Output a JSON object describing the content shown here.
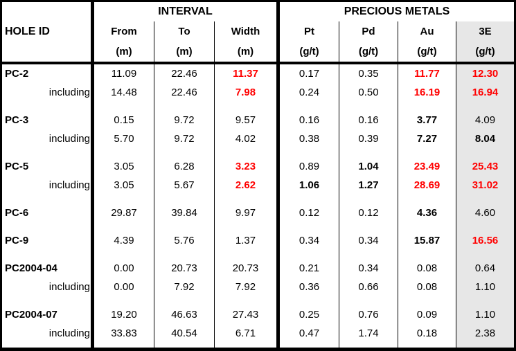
{
  "table": {
    "hole_id_header": "HOLE ID",
    "groups": [
      {
        "label": "INTERVAL"
      },
      {
        "label": "PRECIOUS METALS"
      }
    ],
    "columns": [
      {
        "name": "From",
        "unit": "(m)"
      },
      {
        "name": "To",
        "unit": "(m)"
      },
      {
        "name": "Width",
        "unit": "(m)"
      },
      {
        "name": "Pt",
        "unit": "(g/t)"
      },
      {
        "name": "Pd",
        "unit": "(g/t)"
      },
      {
        "name": "Au",
        "unit": "(g/t)"
      },
      {
        "name": "3E",
        "unit": "(g/t)",
        "highlighted": true
      }
    ],
    "colors": {
      "highlight_red": "#FF0000",
      "shaded_column_bg": "#E7E7E7",
      "border": "#000000"
    },
    "rows": [
      {
        "id": "PC-2",
        "id_type": "hole",
        "values": [
          "11.09",
          "22.46",
          "11.37",
          "0.17",
          "0.35",
          "11.77",
          "12.30"
        ],
        "styles": [
          "n",
          "n",
          "r",
          "n",
          "n",
          "r",
          "r"
        ]
      },
      {
        "id": "including",
        "id_type": "including",
        "values": [
          "14.48",
          "22.46",
          "7.98",
          "0.24",
          "0.50",
          "16.19",
          "16.94"
        ],
        "styles": [
          "n",
          "n",
          "r",
          "n",
          "n",
          "r",
          "r"
        ]
      },
      {
        "type": "gap"
      },
      {
        "id": "PC-3",
        "id_type": "hole",
        "values": [
          "0.15",
          "9.72",
          "9.57",
          "0.16",
          "0.16",
          "3.77",
          "4.09"
        ],
        "styles": [
          "n",
          "n",
          "n",
          "n",
          "n",
          "b",
          "n"
        ]
      },
      {
        "id": "including",
        "id_type": "including",
        "values": [
          "5.70",
          "9.72",
          "4.02",
          "0.38",
          "0.39",
          "7.27",
          "8.04"
        ],
        "styles": [
          "n",
          "n",
          "n",
          "n",
          "n",
          "b",
          "b"
        ]
      },
      {
        "type": "gap"
      },
      {
        "id": "PC-5",
        "id_type": "hole",
        "values": [
          "3.05",
          "6.28",
          "3.23",
          "0.89",
          "1.04",
          "23.49",
          "25.43"
        ],
        "styles": [
          "n",
          "n",
          "r",
          "n",
          "b",
          "r",
          "r"
        ]
      },
      {
        "id": "including",
        "id_type": "including",
        "values": [
          "3.05",
          "5.67",
          "2.62",
          "1.06",
          "1.27",
          "28.69",
          "31.02"
        ],
        "styles": [
          "n",
          "n",
          "r",
          "b",
          "b",
          "r",
          "r"
        ]
      },
      {
        "type": "gap"
      },
      {
        "id": "PC-6",
        "id_type": "hole",
        "values": [
          "29.87",
          "39.84",
          "9.97",
          "0.12",
          "0.12",
          "4.36",
          "4.60"
        ],
        "styles": [
          "n",
          "n",
          "n",
          "n",
          "n",
          "b",
          "n"
        ]
      },
      {
        "type": "gap"
      },
      {
        "id": "PC-9",
        "id_type": "hole",
        "values": [
          "4.39",
          "5.76",
          "1.37",
          "0.34",
          "0.34",
          "15.87",
          "16.56"
        ],
        "styles": [
          "n",
          "n",
          "n",
          "n",
          "n",
          "b",
          "r"
        ]
      },
      {
        "type": "gap"
      },
      {
        "id": "PC2004-04",
        "id_type": "hole",
        "values": [
          "0.00",
          "20.73",
          "20.73",
          "0.21",
          "0.34",
          "0.08",
          "0.64"
        ],
        "styles": [
          "n",
          "n",
          "n",
          "n",
          "n",
          "n",
          "n"
        ]
      },
      {
        "id": "including",
        "id_type": "including",
        "values": [
          "0.00",
          "7.92",
          "7.92",
          "0.36",
          "0.66",
          "0.08",
          "1.10"
        ],
        "styles": [
          "n",
          "n",
          "n",
          "n",
          "n",
          "n",
          "n"
        ]
      },
      {
        "type": "gap"
      },
      {
        "id": "PC2004-07",
        "id_type": "hole",
        "values": [
          "19.20",
          "46.63",
          "27.43",
          "0.25",
          "0.76",
          "0.09",
          "1.10"
        ],
        "styles": [
          "n",
          "n",
          "n",
          "n",
          "n",
          "n",
          "n"
        ]
      },
      {
        "id": "including",
        "id_type": "including",
        "values": [
          "33.83",
          "40.54",
          "6.71",
          "0.47",
          "1.74",
          "0.18",
          "2.38"
        ],
        "styles": [
          "n",
          "n",
          "n",
          "n",
          "n",
          "n",
          "n"
        ]
      }
    ]
  },
  "chart_data": {
    "type": "table",
    "column_groups": [
      {
        "label": "INTERVAL",
        "columns": [
          "From (m)",
          "To (m)",
          "Width (m)"
        ]
      },
      {
        "label": "PRECIOUS METALS",
        "columns": [
          "Pt (g/t)",
          "Pd (g/t)",
          "Au (g/t)",
          "3E (g/t)"
        ]
      }
    ],
    "columns": [
      "HOLE ID",
      "From (m)",
      "To (m)",
      "Width (m)",
      "Pt (g/t)",
      "Pd (g/t)",
      "Au (g/t)",
      "3E (g/t)"
    ],
    "rows": [
      [
        "PC-2",
        11.09,
        22.46,
        11.37,
        0.17,
        0.35,
        11.77,
        12.3
      ],
      [
        "including",
        14.48,
        22.46,
        7.98,
        0.24,
        0.5,
        16.19,
        16.94
      ],
      [
        "PC-3",
        0.15,
        9.72,
        9.57,
        0.16,
        0.16,
        3.77,
        4.09
      ],
      [
        "including",
        5.7,
        9.72,
        4.02,
        0.38,
        0.39,
        7.27,
        8.04
      ],
      [
        "PC-5",
        3.05,
        6.28,
        3.23,
        0.89,
        1.04,
        23.49,
        25.43
      ],
      [
        "including",
        3.05,
        5.67,
        2.62,
        1.06,
        1.27,
        28.69,
        31.02
      ],
      [
        "PC-6",
        29.87,
        39.84,
        9.97,
        0.12,
        0.12,
        4.36,
        4.6
      ],
      [
        "PC-9",
        4.39,
        5.76,
        1.37,
        0.34,
        0.34,
        15.87,
        16.56
      ],
      [
        "PC2004-04",
        0.0,
        20.73,
        20.73,
        0.21,
        0.34,
        0.08,
        0.64
      ],
      [
        "including",
        0.0,
        7.92,
        7.92,
        0.36,
        0.66,
        0.08,
        1.1
      ],
      [
        "PC2004-07",
        19.2,
        46.63,
        27.43,
        0.25,
        0.76,
        0.09,
        1.1
      ],
      [
        "including",
        33.83,
        40.54,
        6.71,
        0.47,
        1.74,
        0.18,
        2.38
      ]
    ],
    "notes": "Red bold values indicate highlighted intercepts; 3E column is shaded gray"
  }
}
